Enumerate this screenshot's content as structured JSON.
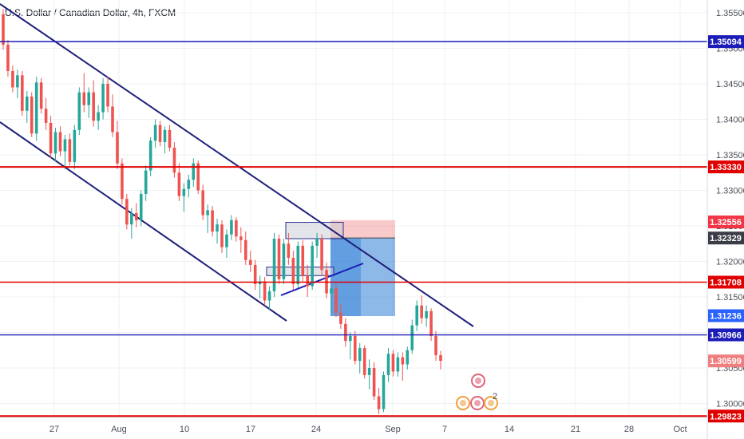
{
  "title": "U.S. Dollar / Canadian Dollar, 4h, FXCM",
  "colors": {
    "up": "#26a69a",
    "down": "#ef5350",
    "channel": "#1f1f7a",
    "hline_red": "#e00000",
    "hline_blue": "#1c1cb8",
    "tp_zone": "#2f7fd6",
    "sl_zone": "#f28a8a",
    "grid": "#eef0f4",
    "tag_current": "#ef7f7f",
    "tag_dark": "#3a3d46",
    "tag_blue": "#2962ff"
  },
  "chart_data": {
    "type": "candlestick",
    "ylim": [
      1.2965,
      1.357
    ],
    "price_ticks": [
      "1.30000",
      "1.30500",
      "1.31000",
      "1.31500",
      "1.32000",
      "1.32500",
      "1.33000",
      "1.33500",
      "1.34000",
      "1.34500",
      "1.35000",
      "1.35500"
    ],
    "date_ticks": [
      "27",
      "Aug",
      "10",
      "17",
      "24",
      "Sep",
      "7",
      "14",
      "21",
      "28",
      "Oct"
    ],
    "horizontal_lines": [
      {
        "value": 1.35094,
        "label": "1.35094",
        "color": "blue"
      },
      {
        "value": 1.3333,
        "label": "1.33330",
        "color": "red"
      },
      {
        "value": 1.31708,
        "label": "1.31708",
        "color": "red"
      },
      {
        "value": 1.30966,
        "label": "1.30966",
        "color": "blue"
      },
      {
        "value": 1.29823,
        "label": "1.29823",
        "color": "red"
      }
    ],
    "price_tags": [
      {
        "value": 1.32556,
        "label": "1.32556",
        "style": "red"
      },
      {
        "value": 1.32329,
        "label": "1.32329",
        "style": "dark"
      },
      {
        "value": 1.31236,
        "label": "1.31236",
        "style": "blue"
      },
      {
        "value": 1.30599,
        "label": "1.30599",
        "style": "current"
      }
    ],
    "candles": [
      [
        1.3548,
        1.3555,
        1.3498,
        1.3505
      ],
      [
        1.3505,
        1.3512,
        1.346,
        1.3468
      ],
      [
        1.3468,
        1.3476,
        1.3438,
        1.3445
      ],
      [
        1.3445,
        1.347,
        1.343,
        1.3462
      ],
      [
        1.3462,
        1.3468,
        1.3405,
        1.3412
      ],
      [
        1.3412,
        1.344,
        1.3395,
        1.3432
      ],
      [
        1.3432,
        1.3438,
        1.3375,
        1.338
      ],
      [
        1.338,
        1.346,
        1.337,
        1.3452
      ],
      [
        1.3452,
        1.3458,
        1.3408,
        1.3415
      ],
      [
        1.3415,
        1.343,
        1.3385,
        1.3395
      ],
      [
        1.3395,
        1.3405,
        1.3345,
        1.3352
      ],
      [
        1.3352,
        1.3388,
        1.334,
        1.3382
      ],
      [
        1.3382,
        1.339,
        1.3348,
        1.3355
      ],
      [
        1.3355,
        1.3378,
        1.333,
        1.3372
      ],
      [
        1.3372,
        1.338,
        1.3335,
        1.334
      ],
      [
        1.334,
        1.3392,
        1.333,
        1.3385
      ],
      [
        1.3385,
        1.3445,
        1.3378,
        1.3438
      ],
      [
        1.3438,
        1.3465,
        1.341,
        1.342
      ],
      [
        1.342,
        1.3445,
        1.3402,
        1.3438
      ],
      [
        1.3438,
        1.3455,
        1.339,
        1.3398
      ],
      [
        1.3398,
        1.342,
        1.3385,
        1.341
      ],
      [
        1.341,
        1.3458,
        1.34,
        1.345
      ],
      [
        1.345,
        1.346,
        1.341,
        1.3418
      ],
      [
        1.3418,
        1.3435,
        1.3375,
        1.3382
      ],
      [
        1.3382,
        1.3398,
        1.333,
        1.3338
      ],
      [
        1.3338,
        1.3345,
        1.328,
        1.3288
      ],
      [
        1.3288,
        1.3295,
        1.3245,
        1.3252
      ],
      [
        1.3252,
        1.3275,
        1.3232,
        1.3268
      ],
      [
        1.3268,
        1.3282,
        1.3248,
        1.3258
      ],
      [
        1.3258,
        1.33,
        1.325,
        1.3295
      ],
      [
        1.3295,
        1.3335,
        1.3285,
        1.3328
      ],
      [
        1.3328,
        1.3375,
        1.332,
        1.337
      ],
      [
        1.337,
        1.34,
        1.336,
        1.3392
      ],
      [
        1.3392,
        1.3398,
        1.3362,
        1.3368
      ],
      [
        1.3368,
        1.339,
        1.3352,
        1.3385
      ],
      [
        1.3385,
        1.3392,
        1.3355,
        1.336
      ],
      [
        1.336,
        1.3368,
        1.3318,
        1.3325
      ],
      [
        1.3325,
        1.3338,
        1.3285,
        1.3292
      ],
      [
        1.3292,
        1.331,
        1.327,
        1.3302
      ],
      [
        1.3302,
        1.3322,
        1.329,
        1.3315
      ],
      [
        1.3315,
        1.3345,
        1.3305,
        1.3338
      ],
      [
        1.3338,
        1.3342,
        1.3295,
        1.33
      ],
      [
        1.33,
        1.3308,
        1.3258,
        1.3265
      ],
      [
        1.3265,
        1.328,
        1.324,
        1.3272
      ],
      [
        1.3272,
        1.3278,
        1.3235,
        1.3242
      ],
      [
        1.3242,
        1.326,
        1.3225,
        1.3252
      ],
      [
        1.3252,
        1.3258,
        1.3212,
        1.322
      ],
      [
        1.322,
        1.3245,
        1.3205,
        1.3238
      ],
      [
        1.3238,
        1.3265,
        1.323,
        1.3258
      ],
      [
        1.3258,
        1.3262,
        1.3228,
        1.3235
      ],
      [
        1.3235,
        1.3248,
        1.3212,
        1.323
      ],
      [
        1.323,
        1.3242,
        1.3195,
        1.3202
      ],
      [
        1.3202,
        1.3215,
        1.3185,
        1.3195
      ],
      [
        1.3195,
        1.3202,
        1.316,
        1.3168
      ],
      [
        1.3168,
        1.318,
        1.3148,
        1.3172
      ],
      [
        1.3172,
        1.3178,
        1.3138,
        1.3145
      ],
      [
        1.3145,
        1.3165,
        1.3132,
        1.3158
      ],
      [
        1.3158,
        1.324,
        1.315,
        1.3232
      ],
      [
        1.3232,
        1.3238,
        1.3168,
        1.3175
      ],
      [
        1.3175,
        1.3232,
        1.3168,
        1.3225
      ],
      [
        1.3225,
        1.324,
        1.3195,
        1.3205
      ],
      [
        1.3205,
        1.3215,
        1.316,
        1.3168
      ],
      [
        1.3168,
        1.3228,
        1.3162,
        1.3222
      ],
      [
        1.3222,
        1.323,
        1.3172,
        1.318
      ],
      [
        1.318,
        1.3195,
        1.315,
        1.3165
      ],
      [
        1.3165,
        1.3228,
        1.316,
        1.3222
      ],
      [
        1.3222,
        1.324,
        1.3205,
        1.3232
      ],
      [
        1.3232,
        1.3238,
        1.318,
        1.3188
      ],
      [
        1.3188,
        1.3198,
        1.3148,
        1.3155
      ],
      [
        1.3155,
        1.3168,
        1.313,
        1.3162
      ],
      [
        1.3162,
        1.3168,
        1.3122,
        1.3128
      ],
      [
        1.3128,
        1.314,
        1.3105,
        1.3112
      ],
      [
        1.3112,
        1.312,
        1.308,
        1.3088
      ],
      [
        1.3088,
        1.31,
        1.3062,
        1.3095
      ],
      [
        1.3095,
        1.3102,
        1.3055,
        1.306
      ],
      [
        1.306,
        1.3085,
        1.3042,
        1.3078
      ],
      [
        1.3078,
        1.3082,
        1.3035,
        1.304
      ],
      [
        1.304,
        1.3062,
        1.302,
        1.305
      ],
      [
        1.305,
        1.3058,
        1.3005,
        1.301
      ],
      [
        1.301,
        1.3022,
        1.2985,
        1.2992
      ],
      [
        1.2992,
        1.3045,
        1.2988,
        1.304
      ],
      [
        1.304,
        1.3078,
        1.303,
        1.307
      ],
      [
        1.307,
        1.3075,
        1.3038,
        1.3045
      ],
      [
        1.3045,
        1.3072,
        1.3038,
        1.3065
      ],
      [
        1.3065,
        1.3072,
        1.3032,
        1.3055
      ],
      [
        1.3055,
        1.308,
        1.3048,
        1.3075
      ],
      [
        1.3075,
        1.3118,
        1.307,
        1.311
      ],
      [
        1.311,
        1.3145,
        1.3102,
        1.3138
      ],
      [
        1.3138,
        1.3152,
        1.3112,
        1.312
      ],
      [
        1.312,
        1.3138,
        1.3108,
        1.313
      ],
      [
        1.313,
        1.3134,
        1.3088,
        1.3095
      ],
      [
        1.3095,
        1.3102,
        1.306,
        1.3068
      ],
      [
        1.3068,
        1.3074,
        1.3048,
        1.306
      ]
    ]
  }
}
